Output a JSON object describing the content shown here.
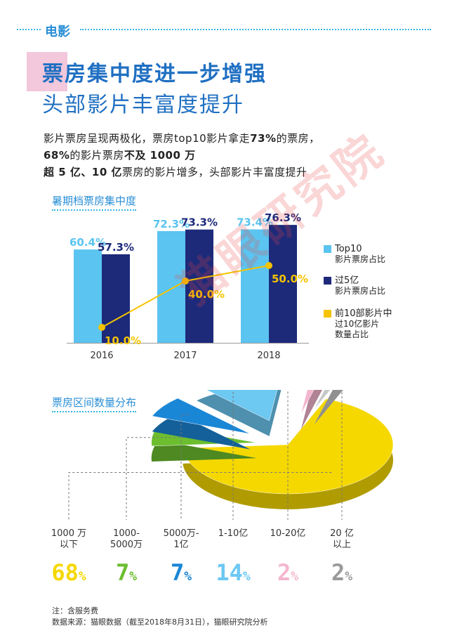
{
  "header": {
    "section": "电影",
    "title_line1": "票房集中度进一步增强",
    "title_line2": "头部影片丰富度提升"
  },
  "intro": {
    "line1_a": "影片票房呈现两极化，票房top10影片拿走",
    "line1_b": "73%",
    "line1_c": "的票房，",
    "line2_a": "68%",
    "line2_b": "的影片票房",
    "line2_c": "不及 1000 万",
    "line3_a": "超 5 亿、10 亿",
    "line3_b": "票房的影片增多，头部影片丰富度提升"
  },
  "chart_data": [
    {
      "type": "bar",
      "title": "暑期档票房集中度",
      "categories": [
        "2016",
        "2017",
        "2018"
      ],
      "series": [
        {
          "name": "Top10\n影片票房占比",
          "values": [
            60.4,
            72.3,
            73.4
          ],
          "labels": [
            "60.4%",
            "72.3%",
            "73.4%"
          ],
          "color": "#5bc4f0",
          "kind": "bar"
        },
        {
          "name": "过5亿\n影片票房占比",
          "values": [
            57.3,
            73.3,
            76.3
          ],
          "labels": [
            "57.3%",
            "73.3%",
            "76.3%"
          ],
          "color": "#1d2a7a",
          "kind": "bar"
        },
        {
          "name": "前10部影片中\n过10亿影片\n数量占比",
          "values": [
            10.0,
            40.0,
            50.0
          ],
          "labels": [
            "10.0%",
            "40.0%",
            "50.0%"
          ],
          "color": "#f5c400",
          "kind": "line"
        }
      ],
      "legend": "right"
    },
    {
      "type": "pie",
      "title": "票房区间数量分布",
      "slices": [
        {
          "label": "1000 万\n以下",
          "value": 68,
          "display": "68",
          "color": "#f5d800"
        },
        {
          "label": "1000-\n5000万",
          "value": 7,
          "display": "7",
          "color": "#6cbe2f"
        },
        {
          "label": "5000万-\n1亿",
          "value": 7,
          "display": "7",
          "color": "#1a86d6"
        },
        {
          "label": "1-10亿",
          "value": 14,
          "display": "14",
          "color": "#6dc8f2"
        },
        {
          "label": "10-20亿",
          "value": 2,
          "display": "2",
          "color": "#f4b6cf"
        },
        {
          "label": "20 亿\n以上",
          "value": 2,
          "display": "2",
          "color": "#c8c8c8"
        }
      ]
    }
  ],
  "percent_sign": "%",
  "watermark": "猫眼研究院",
  "notes": {
    "line1": "注：含服务费",
    "line2": "数据来源：猫眼数据（截至2018年8月31日），猫眼研究院分析"
  }
}
